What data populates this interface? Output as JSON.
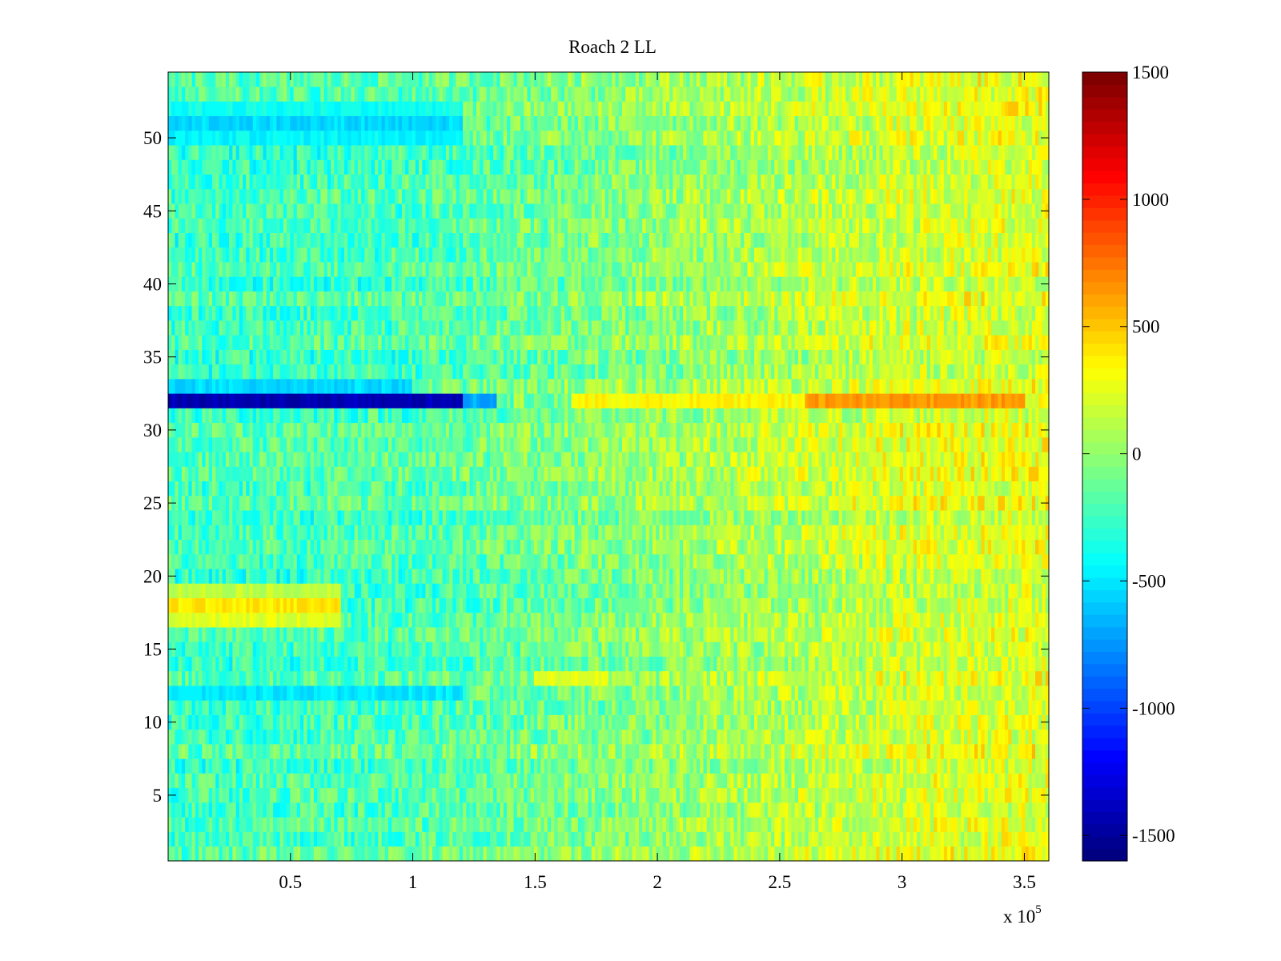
{
  "chart_data": {
    "type": "heatmap",
    "title": "Roach 2 LL",
    "xlabel": "",
    "ylabel": "",
    "x_multiplier_label": "x 10",
    "x_multiplier_exponent": "5",
    "xlim": [
      0,
      3.6
    ],
    "ylim": [
      0.5,
      54.5
    ],
    "x_ticks": [
      0.5,
      1,
      1.5,
      2,
      2.5,
      3,
      3.5
    ],
    "x_tick_labels": [
      "0.5",
      "1",
      "1.5",
      "2",
      "2.5",
      "3",
      "3.5"
    ],
    "y_ticks": [
      5,
      10,
      15,
      20,
      25,
      30,
      35,
      40,
      45,
      50
    ],
    "y_tick_labels": [
      "5",
      "10",
      "15",
      "20",
      "25",
      "30",
      "35",
      "40",
      "45",
      "50"
    ],
    "rows": 54,
    "colorbar": {
      "colormap": "jet",
      "clim": [
        -1600,
        1500
      ],
      "ticks": [
        -1500,
        -1000,
        -500,
        0,
        500,
        1000,
        1500
      ],
      "tick_labels": [
        "-1500",
        "-1000",
        "-500",
        "0",
        "500",
        "1000",
        "1500"
      ]
    },
    "value_profile": {
      "x_units": "x 10^5",
      "baseline_x": [
        0,
        0.5,
        1.0,
        1.5,
        2.0,
        2.5,
        3.0,
        3.6
      ],
      "baseline_value": [
        -250,
        -230,
        -200,
        -100,
        0,
        100,
        200,
        250
      ],
      "noise_amplitude": 230,
      "row_overrides": [
        {
          "row": 32,
          "x_range": [
            0,
            1.2
          ],
          "value": -1450
        },
        {
          "row": 32,
          "x_range": [
            1.2,
            1.35
          ],
          "value": -700
        },
        {
          "row": 32,
          "x_range": [
            1.65,
            2.6
          ],
          "value": 350
        },
        {
          "row": 32,
          "x_range": [
            2.6,
            3.5
          ],
          "value": 650
        },
        {
          "row": 33,
          "x_range": [
            0,
            1.0
          ],
          "value": -550
        },
        {
          "row": 18,
          "x_range": [
            0,
            0.7
          ],
          "value": 400
        },
        {
          "row": 17,
          "x_range": [
            0,
            0.7
          ],
          "value": 250
        },
        {
          "row": 19,
          "x_range": [
            0,
            0.7
          ],
          "value": 150
        },
        {
          "row": 51,
          "x_range": [
            0,
            1.2
          ],
          "value": -550
        },
        {
          "row": 52,
          "x_range": [
            0,
            1.2
          ],
          "value": -400
        },
        {
          "row": 50,
          "x_range": [
            0,
            1.2
          ],
          "value": -450
        },
        {
          "row": 12,
          "x_range": [
            0,
            1.2
          ],
          "value": -500
        },
        {
          "row": 13,
          "x_range": [
            1.5,
            1.8
          ],
          "value": 250
        }
      ]
    }
  }
}
